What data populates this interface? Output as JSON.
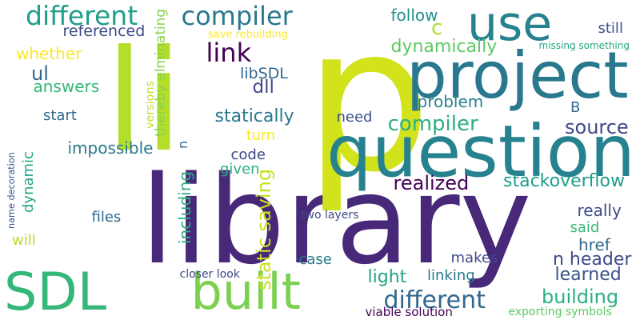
{
  "palette": {
    "background": "#ffffff",
    "colors": [
      "#440154",
      "#482878",
      "#3e4989",
      "#31688e",
      "#26828e",
      "#1f9e89",
      "#35b779",
      "#6ece58",
      "#b5de2b",
      "#fde725"
    ]
  },
  "words": [
    {
      "text": "library",
      "color": "#482878"
    },
    {
      "text": "p",
      "color": "#d2e21b"
    },
    {
      "text": "li",
      "color": "#b5de2b"
    },
    {
      "text": "question",
      "color": "#26828e"
    },
    {
      "text": "project",
      "color": "#2a788e"
    },
    {
      "text": "use",
      "color": "#26828e"
    },
    {
      "text": "built",
      "color": "#7ad151"
    },
    {
      "text": "SDL",
      "color": "#35b779"
    },
    {
      "text": "different",
      "color": "#1f9e89"
    },
    {
      "text": "compiler",
      "color": "#2a788e"
    },
    {
      "text": "link",
      "color": "#440154"
    },
    {
      "text": "c",
      "color": "#addc30"
    },
    {
      "text": "follow",
      "color": "#21918c"
    },
    {
      "text": "still",
      "color": "#3b528b"
    },
    {
      "text": "referenced",
      "color": "#3e4989"
    },
    {
      "text": "save rebuilding",
      "color": "#fde725"
    },
    {
      "text": "missing something",
      "color": "#22a884"
    },
    {
      "text": "whether",
      "color": "#fde725"
    },
    {
      "text": "ul",
      "color": "#31688e"
    },
    {
      "text": "dynamically",
      "color": "#5ec962"
    },
    {
      "text": "libSDL",
      "color": "#31688e"
    },
    {
      "text": "dll",
      "color": "#3e4989"
    },
    {
      "text": "answers",
      "color": "#35b779"
    },
    {
      "text": "thereby elminating",
      "color": "#84d44b"
    },
    {
      "text": "versions",
      "color": "#c2df23"
    },
    {
      "text": "problem",
      "color": "#26828e"
    },
    {
      "text": "B",
      "color": "#31688e"
    },
    {
      "text": "start",
      "color": "#31688e"
    },
    {
      "text": "statically",
      "color": "#2a788e"
    },
    {
      "text": "need",
      "color": "#3b528b"
    },
    {
      "text": "compiler",
      "color": "#2ab07f"
    },
    {
      "text": "source",
      "color": "#3e4989"
    },
    {
      "text": "turn",
      "color": "#fde725"
    },
    {
      "text": "impossible",
      "color": "#2a788e"
    },
    {
      "text": "n",
      "color": "#31688e"
    },
    {
      "text": "code",
      "color": "#3e4989"
    },
    {
      "text": "name decoration",
      "color": "#3b528b"
    },
    {
      "text": "dynamic",
      "color": "#20a486"
    },
    {
      "text": "given",
      "color": "#2ab07f"
    },
    {
      "text": "including",
      "color": "#2ab07f"
    },
    {
      "text": "static saving",
      "color": "#c8e020"
    },
    {
      "text": "realized",
      "color": "#440154"
    },
    {
      "text": "stackoverflow",
      "color": "#1f9e89"
    },
    {
      "text": "files",
      "color": "#31688e"
    },
    {
      "text": "two layers",
      "color": "#3e4989"
    },
    {
      "text": "really",
      "color": "#3e4989"
    },
    {
      "text": "said",
      "color": "#35b779"
    },
    {
      "text": "will",
      "color": "#b5de2b"
    },
    {
      "text": "href",
      "color": "#31688e"
    },
    {
      "text": "case",
      "color": "#2a788e"
    },
    {
      "text": "makes",
      "color": "#3e4989"
    },
    {
      "text": "n header",
      "color": "#3e4989"
    },
    {
      "text": "closer look",
      "color": "#3e4989"
    },
    {
      "text": "light",
      "color": "#20a486"
    },
    {
      "text": "linking",
      "color": "#2a788e"
    },
    {
      "text": "learned",
      "color": "#3b528b"
    },
    {
      "text": "different",
      "color": "#31688e"
    },
    {
      "text": "building",
      "color": "#2ab07f"
    },
    {
      "text": "viable solution",
      "color": "#440154"
    },
    {
      "text": "exporting symbols",
      "color": "#5ec962"
    }
  ]
}
